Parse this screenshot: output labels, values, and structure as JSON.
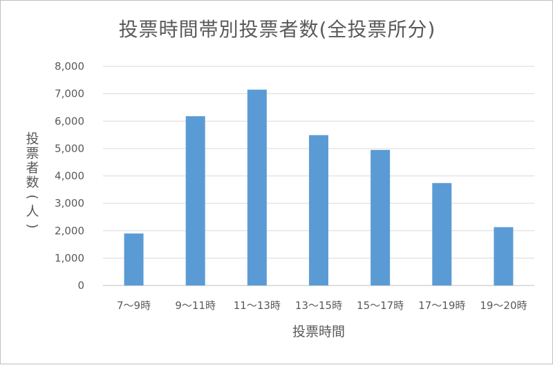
{
  "chart_data": {
    "type": "bar",
    "title": "投票時間帯別投票者数(全投票所分)",
    "xlabel": "投票時間",
    "ylabel": "投票者数(人)",
    "categories": [
      "7～9時",
      "9～11時",
      "11～13時",
      "13～15時",
      "15～17時",
      "17～19時",
      "19～20時"
    ],
    "series": [
      {
        "values": [
          1900,
          6180,
          7150,
          5490,
          4950,
          3740,
          2130
        ]
      }
    ],
    "ylim": [
      0,
      8000
    ],
    "yticks": [
      "0",
      "1,000",
      "2,000",
      "3,000",
      "4,000",
      "5,000",
      "6,000",
      "7,000",
      "8,000"
    ],
    "grid": true,
    "legend": "none",
    "bar_color": "#5b9bd5"
  }
}
